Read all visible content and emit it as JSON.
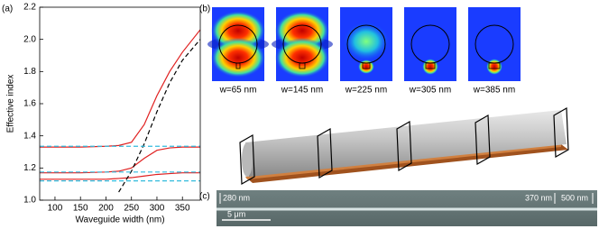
{
  "chart_data": {
    "type": "line",
    "xlabel": "Waveguide width (nm)",
    "ylabel": "Effective index",
    "x": [
      70,
      100,
      150,
      200,
      225,
      250,
      275,
      300,
      325,
      350,
      385
    ],
    "series": [
      {
        "color": "#e02020",
        "style": "solid",
        "values": [
          1.33,
          1.33,
          1.33,
          1.335,
          1.34,
          1.36,
          1.47,
          1.65,
          1.8,
          1.92,
          2.06
        ]
      },
      {
        "color": "#e02020",
        "style": "solid",
        "values": [
          1.17,
          1.17,
          1.17,
          1.175,
          1.18,
          1.2,
          1.26,
          1.31,
          1.325,
          1.33,
          1.33
        ]
      },
      {
        "color": "#e02020",
        "style": "solid",
        "values": [
          1.13,
          1.13,
          1.13,
          1.13,
          1.135,
          1.14,
          1.15,
          1.16,
          1.165,
          1.17,
          1.17
        ]
      },
      {
        "color": "#000000",
        "style": "dashed",
        "values": [
          null,
          null,
          null,
          null,
          1.05,
          1.18,
          1.35,
          1.55,
          1.73,
          1.87,
          2.0
        ]
      },
      {
        "color": "#33bbdd",
        "style": "dashed",
        "values": [
          1.335,
          1.335,
          1.335,
          1.335,
          1.335,
          1.335,
          1.335,
          1.335,
          1.335,
          1.335,
          1.335
        ]
      },
      {
        "color": "#33bbdd",
        "style": "dashed",
        "values": [
          1.175,
          1.175,
          1.175,
          1.175,
          1.175,
          1.175,
          1.175,
          1.175,
          1.175,
          1.175,
          1.175
        ]
      },
      {
        "color": "#33bbdd",
        "style": "dashed",
        "values": [
          1.12,
          1.12,
          1.12,
          1.12,
          1.12,
          1.12,
          1.12,
          1.12,
          1.12,
          1.12,
          1.12
        ]
      }
    ],
    "xlim": [
      70,
      385
    ],
    "xticks": [
      100,
      150,
      200,
      250,
      300,
      350
    ],
    "ylim": [
      1.0,
      2.2
    ],
    "yticks": [
      {
        "value": 1.0,
        "label": "1.0"
      },
      1.2,
      1.4,
      1.6,
      1.8,
      {
        "value": 2.0,
        "label": "2.0"
      },
      2.2
    ]
  },
  "figure": {
    "panels": [
      "(a)",
      "(b)",
      "(c)"
    ],
    "mode_labels": [
      "w=65 nm",
      "w=145 nm",
      "w=225 nm",
      "w=305 nm",
      "w=385 nm"
    ],
    "sem_labels": [
      "280 nm",
      "370 nm",
      "500 nm",
      "5 μm"
    ]
  }
}
